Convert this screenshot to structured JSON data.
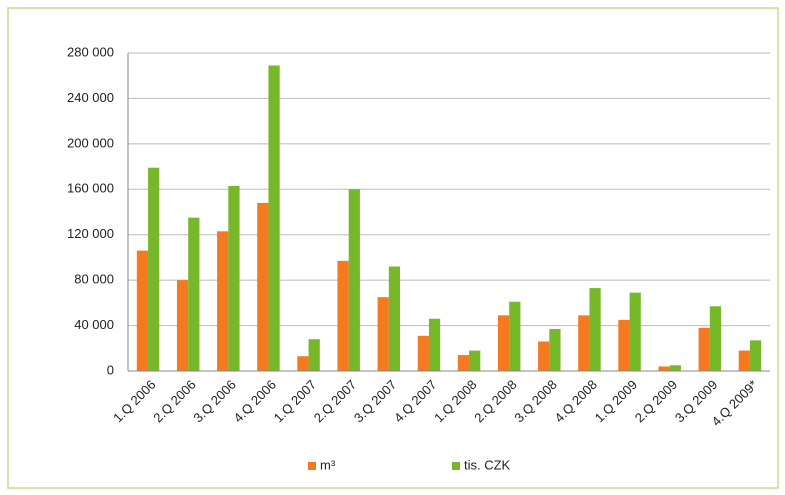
{
  "chart_data": {
    "type": "bar",
    "categories": [
      "1.Q 2006",
      "2.Q 2006",
      "3.Q 2006",
      "4.Q 2006",
      "1.Q 2007",
      "2.Q 2007",
      "3.Q 2007",
      "4.Q 2007",
      "1.Q 2008",
      "2.Q 2008",
      "3.Q 2008",
      "4.Q 2008",
      "1.Q 2009",
      "2.Q 2009",
      "3.Q 2009",
      "4.Q 2009*"
    ],
    "series": [
      {
        "name": "m³",
        "color": "#f5791f",
        "values": [
          106000,
          80000,
          123000,
          148000,
          13000,
          97000,
          65000,
          31000,
          14000,
          49000,
          26000,
          49000,
          45000,
          4000,
          38000,
          18000
        ]
      },
      {
        "name": "tis. CZK",
        "color": "#76b82a",
        "values": [
          179000,
          135000,
          163000,
          269000,
          28000,
          160000,
          92000,
          46000,
          18000,
          61000,
          37000,
          73000,
          69000,
          5000,
          57000,
          27000
        ]
      }
    ],
    "ylim": [
      0,
      280000
    ],
    "yticks": [
      0,
      {
        "value": 40000,
        "label": "40 000"
      },
      {
        "value": 80000,
        "label": "80 000"
      },
      {
        "value": 120000,
        "label": "120 000"
      },
      {
        "value": 160000,
        "label": "160 000"
      },
      {
        "value": 200000,
        "label": "200 000"
      },
      {
        "value": 240000,
        "label": "240 000"
      },
      {
        "value": 280000,
        "label": "280 000"
      }
    ],
    "grid": true,
    "legend": "bottom"
  }
}
